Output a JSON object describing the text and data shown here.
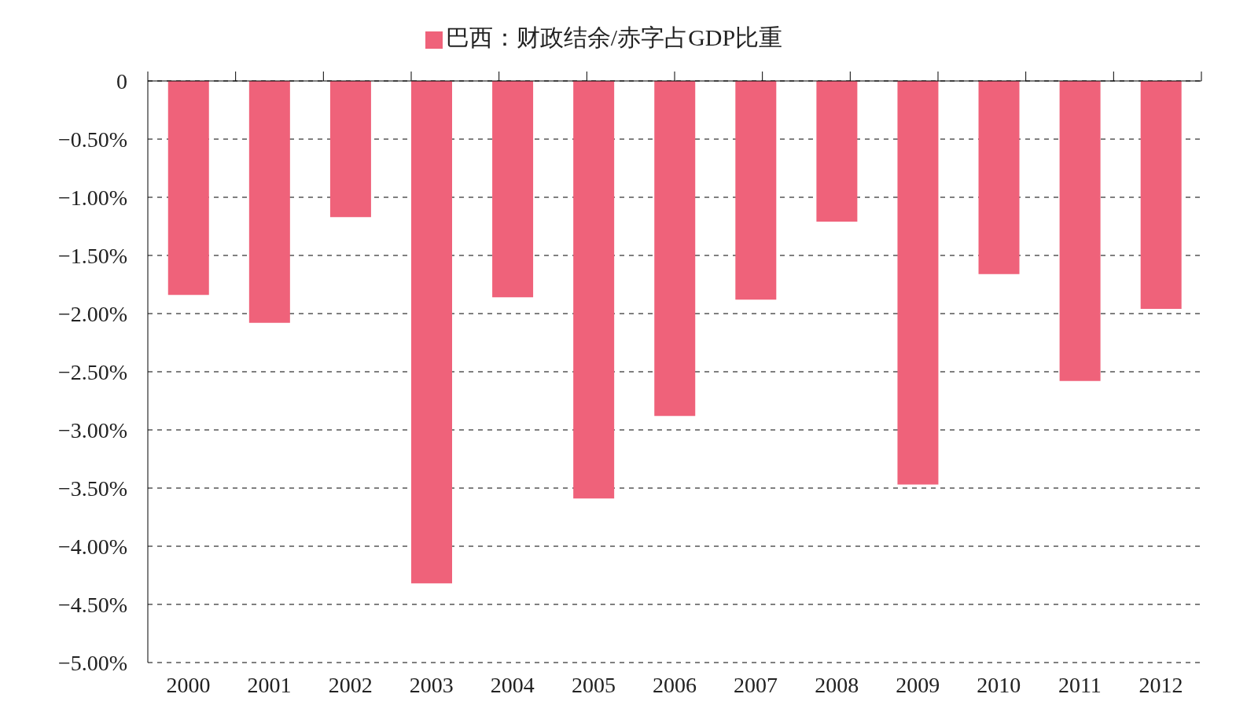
{
  "chart_data": {
    "type": "bar",
    "categories": [
      "2000",
      "2001",
      "2002",
      "2003",
      "2004",
      "2005",
      "2006",
      "2007",
      "2008",
      "2009",
      "2010",
      "2011",
      "2012"
    ],
    "series": [
      {
        "name": "巴西：财政结余/赤字占GDP比重",
        "color": "#ef627a",
        "values": [
          -1.84,
          -2.08,
          -1.17,
          -4.32,
          -1.86,
          -3.59,
          -2.88,
          -1.88,
          -1.21,
          -3.47,
          -1.66,
          -2.58,
          -1.96
        ]
      }
    ],
    "ylim": [
      -5,
      0
    ],
    "yticks": [
      {
        "value": 0,
        "label": "0"
      },
      {
        "value": -0.5,
        "label": "−0.50%"
      },
      {
        "value": -1,
        "label": "−1.00%"
      },
      {
        "value": -1.5,
        "label": "−1.50%"
      },
      {
        "value": -2,
        "label": "−2.00%"
      },
      {
        "value": -2.5,
        "label": "−2.50%"
      },
      {
        "value": -3,
        "label": "−3.00%"
      },
      {
        "value": -3.5,
        "label": "−3.50%"
      },
      {
        "value": -4,
        "label": "−4.00%"
      },
      {
        "value": -4.5,
        "label": "−4.50%"
      },
      {
        "value": -5,
        "label": "−5.00%"
      }
    ],
    "grid": "y",
    "legend": "top"
  }
}
